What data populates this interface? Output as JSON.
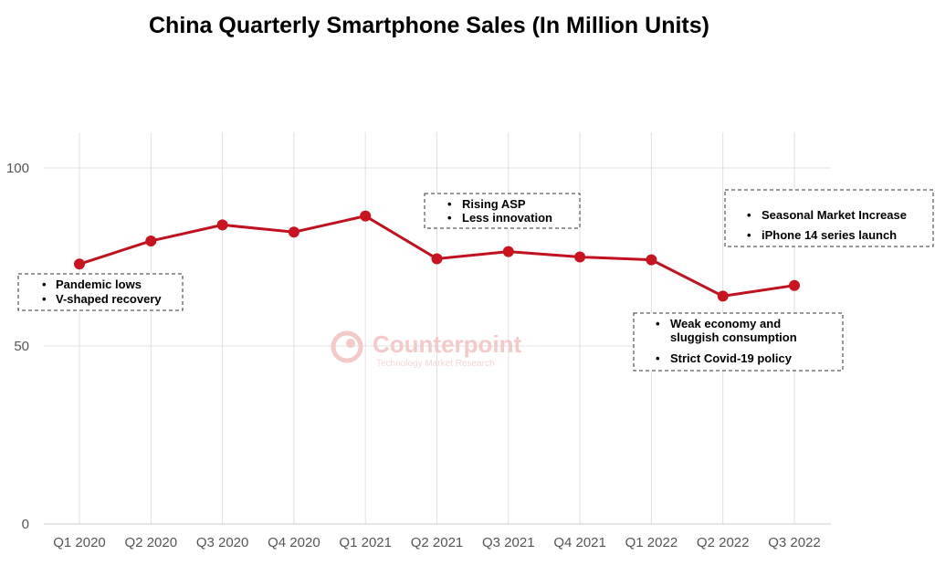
{
  "chart_data": {
    "type": "line",
    "title": "China Quarterly Smartphone Sales (In Million Units)",
    "categories": [
      "Q1 2020",
      "Q2 2020",
      "Q3 2020",
      "Q4 2020",
      "Q1 2021",
      "Q2 2021",
      "Q3 2021",
      "Q4 2021",
      "Q1 2022",
      "Q2 2022",
      "Q3 2022"
    ],
    "series": [
      {
        "values": [
          73,
          79.5,
          84,
          82,
          86.5,
          74.5,
          76.5,
          75,
          74.2,
          64,
          67
        ]
      }
    ],
    "ylim": [
      0,
      110
    ],
    "yticks": [
      0,
      50,
      100
    ],
    "grid": true,
    "colors": {
      "line": "#c0111f",
      "marker": "#c9141f",
      "grid": "#e0e0e0"
    },
    "annotations": [
      {
        "lines": [
          "Pandemic lows",
          "V-shaped recovery"
        ]
      },
      {
        "lines": [
          "Rising ASP",
          "Less innovation"
        ]
      },
      {
        "lines": [
          "Seasonal Market Increase",
          "iPhone 14 series launch"
        ]
      },
      {
        "lines": [
          "Weak economy and",
          "sluggish consumption",
          "Strict Covid-19 policy"
        ]
      }
    ]
  },
  "watermark": {
    "brand": "Counterpoint",
    "tagline": "Technology Market Research"
  }
}
